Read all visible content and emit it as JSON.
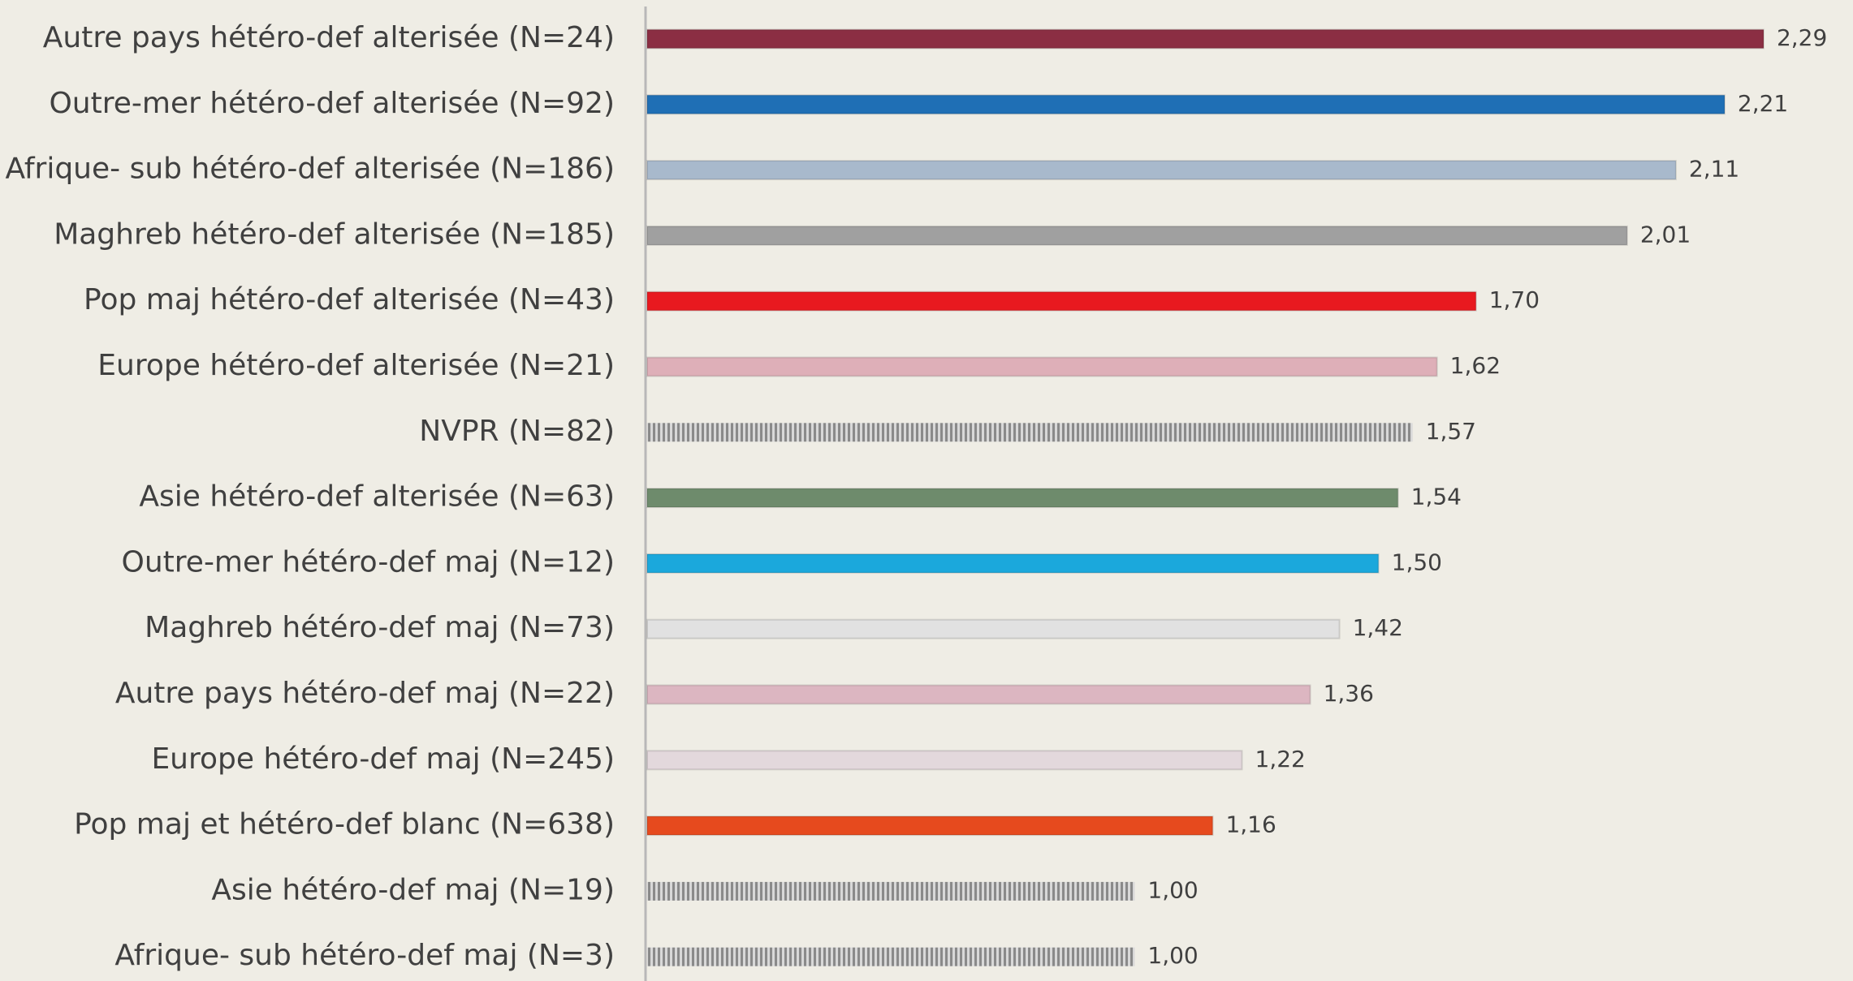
{
  "chart_data": {
    "type": "barh",
    "categories": [
      "Autre pays hétéro-def alterisée (N=24)",
      "Outre-mer hétéro-def alterisée (N=92)",
      "Afrique- sub hétéro-def alterisée (N=186)",
      "Maghreb hétéro-def alterisée (N=185)",
      "Pop maj hétéro-def alterisée (N=43)",
      "Europe hétéro-def alterisée (N=21)",
      "NVPR (N=82)",
      "Asie hétéro-def alterisée (N=63)",
      "Outre-mer hétéro-def maj (N=12)",
      "Maghreb hétéro-def maj (N=73)",
      "Autre pays hétéro-def maj (N=22)",
      "Europe hétéro-def maj (N=245)",
      "Pop maj et hétéro-def blanc (N=638)",
      "Asie hétéro-def maj (N=19)",
      "Afrique- sub hétéro-def maj (N=3)"
    ],
    "values": [
      2.29,
      2.21,
      2.11,
      2.01,
      1.7,
      1.62,
      1.57,
      1.54,
      1.5,
      1.42,
      1.36,
      1.22,
      1.16,
      1.0,
      1.0
    ],
    "value_labels": [
      "2,29",
      "2,21",
      "2,11",
      "2,01",
      "1,70",
      "1,62",
      "1,57",
      "1,54",
      "1,50",
      "1,42",
      "1,36",
      "1,22",
      "1,16",
      "1,00",
      "1,00"
    ],
    "colors": [
      "#8b2e43",
      "#1f6fb5",
      "#a8b9cc",
      "#a0a0a0",
      "#e8191f",
      "#deafb8",
      "#9a9a9a",
      "#6e8b6c",
      "#1ba8dc",
      "#e1e1e1",
      "#dcb6c1",
      "#e3d8dc",
      "#e64a1e",
      "#9a9a9a",
      "#9a9a9a"
    ],
    "hatched": [
      false,
      false,
      false,
      false,
      false,
      false,
      true,
      false,
      false,
      false,
      false,
      false,
      false,
      true,
      true
    ],
    "xlim": [
      0,
      2.4
    ]
  }
}
